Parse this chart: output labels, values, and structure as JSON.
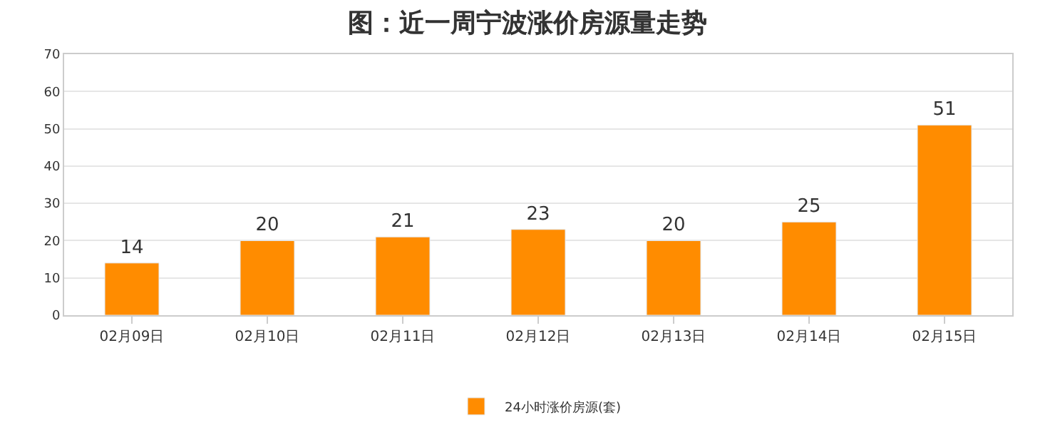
{
  "chart_data": {
    "type": "bar",
    "title": "图：近一周宁波涨价房源量走势",
    "categories": [
      "02月09日",
      "02月10日",
      "02月11日",
      "02月12日",
      "02月13日",
      "02月14日",
      "02月15日"
    ],
    "series": [
      {
        "name": "24小时涨价房源(套)",
        "color": "#ff8c00",
        "values": [
          14,
          20,
          21,
          23,
          20,
          25,
          51
        ]
      }
    ],
    "ylim": [
      0,
      70
    ],
    "yticks": [
      0,
      10,
      20,
      30,
      40,
      50,
      60,
      70
    ],
    "grid": "y",
    "legend": "bottom",
    "data_labels": true
  }
}
